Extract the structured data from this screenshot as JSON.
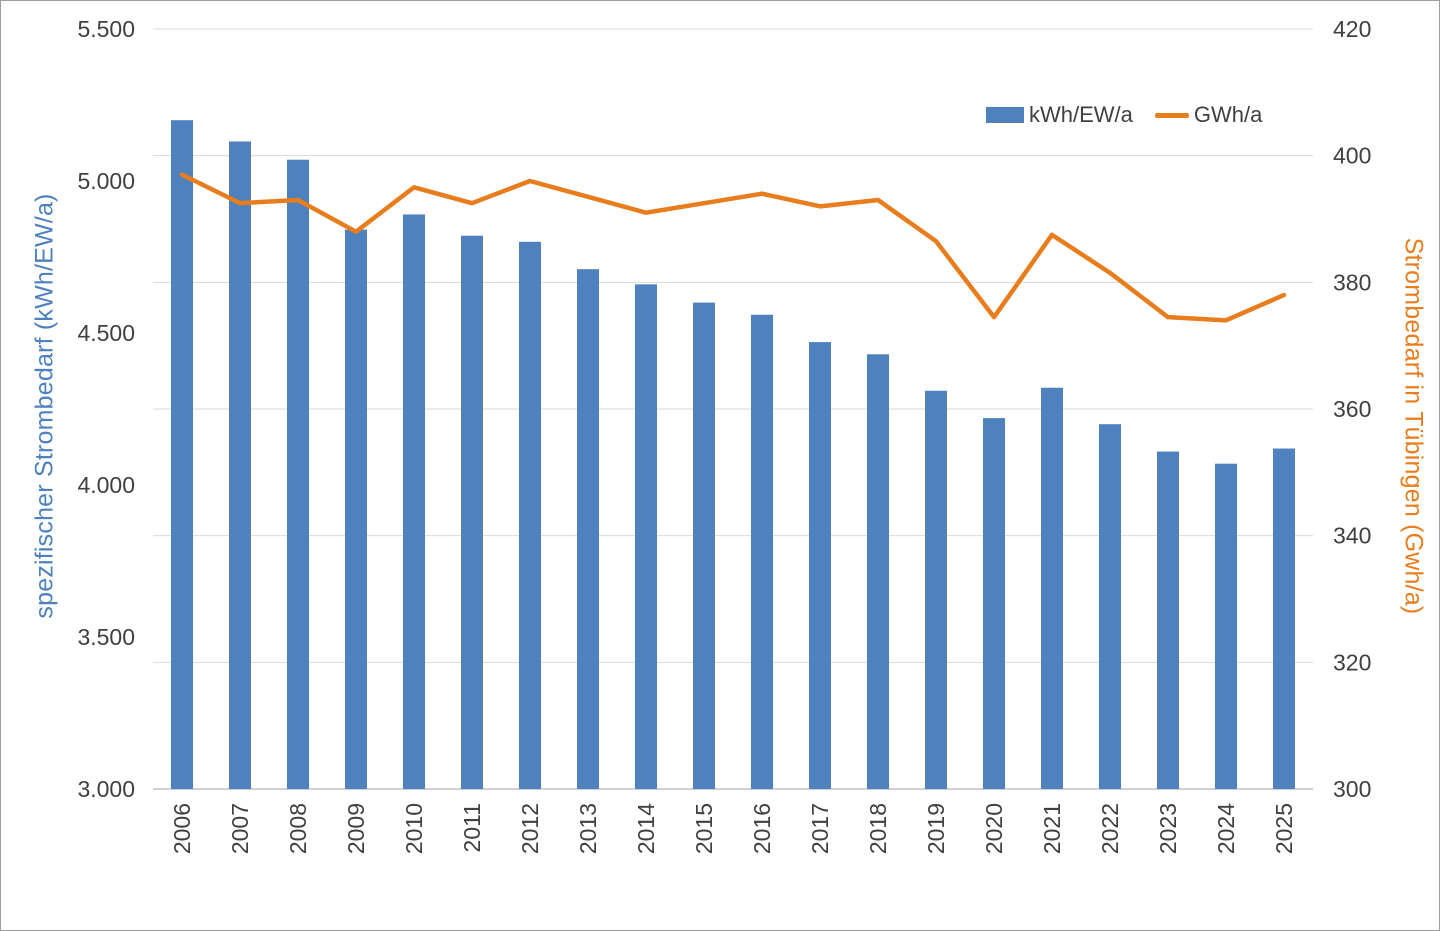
{
  "chart_data": {
    "type": "combo-bar-line",
    "title": "",
    "categories": [
      2006,
      2007,
      2008,
      2009,
      2010,
      2011,
      2012,
      2013,
      2014,
      2015,
      2016,
      2017,
      2018,
      2019,
      2020,
      2021,
      2022,
      2023,
      2024,
      2025
    ],
    "series": [
      {
        "name": "kWh/EW/a",
        "type": "bar",
        "axis": "left",
        "values": [
          5200,
          5130,
          5070,
          4840,
          4890,
          4820,
          4800,
          4710,
          4660,
          4600,
          4560,
          4470,
          4430,
          4310,
          4220,
          4320,
          4200,
          4110,
          4070,
          4120
        ]
      },
      {
        "name": "GWh/a",
        "type": "line",
        "axis": "right",
        "values": [
          397,
          392.5,
          393,
          388,
          395,
          392.5,
          396,
          393.5,
          391,
          392.5,
          394,
          392,
          393,
          386.5,
          374.5,
          387.5,
          381.5,
          374.5,
          374,
          378
        ]
      }
    ],
    "left_axis": {
      "label": "spezifischer Strombedarf (kWh/EW/a)",
      "min": 3000,
      "max": 5500,
      "ticks": [
        "5.500",
        "5.000",
        "4.500",
        "4.000",
        "3.500",
        "3.000"
      ]
    },
    "right_axis": {
      "label": "Strombedarf in Tübingen (Gwh/a)",
      "min": 300,
      "max": 420,
      "ticks": [
        "420",
        "400",
        "380",
        "360",
        "340",
        "320",
        "300"
      ]
    },
    "legend": {
      "position": "top-right"
    },
    "grid": true
  },
  "colors": {
    "bar": "#4e81bd",
    "line": "#e87d1e",
    "left_label": "#4e81bd",
    "right_label": "#e87d1e",
    "tick": "#404040",
    "grid": "#d9d9d9",
    "axis": "#bfbfbf",
    "background": "#ffffff"
  }
}
